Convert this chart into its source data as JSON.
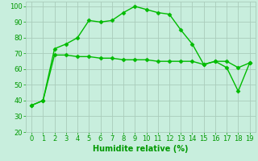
{
  "xlabel": "Humidite relative (%)",
  "line1_x": [
    0,
    1,
    2,
    3,
    4,
    5,
    6,
    7,
    8,
    9,
    10,
    11,
    12,
    13,
    14,
    15,
    16,
    17,
    18,
    19
  ],
  "line1_y": [
    37,
    40,
    73,
    76,
    80,
    91,
    90,
    91,
    96,
    100,
    98,
    96,
    95,
    85,
    76,
    63,
    65,
    61,
    46,
    64
  ],
  "line2_x": [
    0,
    1,
    2,
    3,
    4,
    5,
    6,
    7,
    8,
    9,
    10,
    11,
    12,
    13,
    14,
    15,
    16,
    17,
    18,
    19
  ],
  "line2_y": [
    37,
    40,
    69,
    69,
    68,
    68,
    67,
    67,
    66,
    66,
    66,
    65,
    65,
    65,
    65,
    63,
    65,
    65,
    61,
    64
  ],
  "line_color": "#00bb00",
  "marker": "D",
  "markersize": 2.5,
  "linewidth": 1.0,
  "background_color": "#c8eedd",
  "grid_color": "#aaccbb",
  "ylim": [
    20,
    103
  ],
  "xlim": [
    -0.5,
    19.5
  ],
  "yticks": [
    20,
    30,
    40,
    50,
    60,
    70,
    80,
    90,
    100
  ],
  "xticks": [
    0,
    1,
    2,
    3,
    4,
    5,
    6,
    7,
    8,
    9,
    10,
    11,
    12,
    13,
    14,
    15,
    16,
    17,
    18,
    19
  ],
  "tick_color": "#009900",
  "xlabel_color": "#009900",
  "xlabel_fontsize": 7,
  "tick_fontsize": 6
}
